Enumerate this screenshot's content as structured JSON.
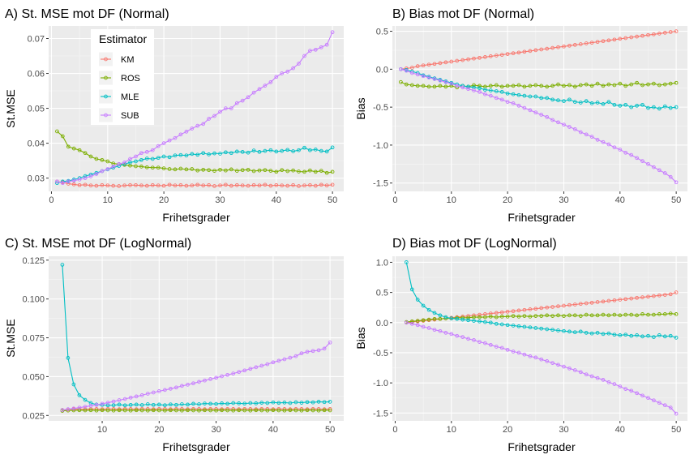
{
  "chart_data": [
    {
      "type": "line",
      "title": "A) St. MSE mot DF (Normal)",
      "xlabel": "Frihetsgrader",
      "ylabel": "St.MSE",
      "xlim": [
        -0.5,
        52
      ],
      "ylim": [
        0.0262,
        0.0736
      ],
      "xticks": [
        0,
        10,
        20,
        30,
        40,
        50
      ],
      "xtick_labels": [
        "0",
        "10",
        "20",
        "30",
        "40",
        "50"
      ],
      "yticks": [
        0.03,
        0.04,
        0.05,
        0.06,
        0.07
      ],
      "ytick_labels": [
        "0.03",
        "0.04",
        "0.05",
        "0.06",
        "0.07"
      ],
      "legend": {
        "title": "Estimator",
        "placement": "top-left inside",
        "labels": [
          "KM",
          "ROS",
          "MLE",
          "SUB"
        ]
      },
      "x_start": 1,
      "series": [
        {
          "name": "KM",
          "color": "#F8766D",
          "values": [
            0.029,
            0.0288,
            0.0284,
            0.0282,
            0.028,
            0.0281,
            0.0279,
            0.0278,
            0.028,
            0.0279,
            0.0278,
            0.0277,
            0.0279,
            0.028,
            0.028,
            0.0279,
            0.0278,
            0.028,
            0.0279,
            0.0278,
            0.0281,
            0.0279,
            0.028,
            0.0278,
            0.0279,
            0.0281,
            0.0279,
            0.028,
            0.0277,
            0.0279,
            0.0281,
            0.0278,
            0.028,
            0.0279,
            0.0278,
            0.028,
            0.0279,
            0.0281,
            0.0278,
            0.028,
            0.0279,
            0.0278,
            0.028,
            0.0277,
            0.0279,
            0.028,
            0.0278,
            0.0281,
            0.0279,
            0.0281
          ]
        },
        {
          "name": "ROS",
          "color": "#7CAE00",
          "values": [
            0.0434,
            0.042,
            0.039,
            0.0385,
            0.038,
            0.0372,
            0.0362,
            0.0355,
            0.0352,
            0.0348,
            0.0342,
            0.034,
            0.0338,
            0.0336,
            0.0334,
            0.0333,
            0.0331,
            0.033,
            0.033,
            0.0328,
            0.0326,
            0.0325,
            0.0327,
            0.0325,
            0.0326,
            0.0322,
            0.0324,
            0.0323,
            0.0321,
            0.0324,
            0.0322,
            0.0325,
            0.0321,
            0.0323,
            0.0324,
            0.032,
            0.0322,
            0.0323,
            0.0321,
            0.0318,
            0.0323,
            0.032,
            0.0322,
            0.0319,
            0.0318,
            0.0322,
            0.0318,
            0.0321,
            0.0315,
            0.0318
          ]
        },
        {
          "name": "MLE",
          "color": "#00BFC4",
          "values": [
            0.0286,
            0.029,
            0.0292,
            0.0296,
            0.03,
            0.0306,
            0.031,
            0.0315,
            0.032,
            0.0325,
            0.033,
            0.0335,
            0.034,
            0.0345,
            0.0348,
            0.0352,
            0.0356,
            0.0355,
            0.0358,
            0.0362,
            0.036,
            0.0365,
            0.0366,
            0.0365,
            0.0369,
            0.0367,
            0.0372,
            0.0368,
            0.0371,
            0.037,
            0.0374,
            0.0372,
            0.0376,
            0.0375,
            0.0373,
            0.0379,
            0.0375,
            0.0378,
            0.038,
            0.0376,
            0.0378,
            0.0381,
            0.0377,
            0.038,
            0.0387,
            0.038,
            0.0382,
            0.0378,
            0.0376,
            0.0388
          ]
        },
        {
          "name": "SUB",
          "color": "#C77CFF",
          "values": [
            0.029,
            0.0286,
            0.029,
            0.0293,
            0.0296,
            0.03,
            0.0305,
            0.0312,
            0.032,
            0.0326,
            0.0333,
            0.034,
            0.0345,
            0.0355,
            0.0362,
            0.0372,
            0.0375,
            0.038,
            0.0392,
            0.04,
            0.0408,
            0.0415,
            0.0425,
            0.0433,
            0.0442,
            0.045,
            0.0455,
            0.047,
            0.0478,
            0.049,
            0.05,
            0.05,
            0.0515,
            0.0522,
            0.0532,
            0.0545,
            0.0555,
            0.0565,
            0.0575,
            0.059,
            0.06,
            0.0605,
            0.0615,
            0.0628,
            0.065,
            0.0665,
            0.0668,
            0.0675,
            0.0682,
            0.0718
          ]
        }
      ]
    },
    {
      "type": "line",
      "title": "B) Bias mot DF (Normal)",
      "xlabel": "Frihetsgrader",
      "ylabel": "Bias",
      "xlim": [
        -0.5,
        52
      ],
      "ylim": [
        -1.61,
        0.57
      ],
      "xticks": [
        0,
        10,
        20,
        30,
        40,
        50
      ],
      "xtick_labels": [
        "0",
        "10",
        "20",
        "30",
        "40",
        "50"
      ],
      "yticks": [
        -1.5,
        -1.0,
        -0.5,
        0.0,
        0.5
      ],
      "ytick_labels": [
        "-1.5",
        "-1.0",
        "-0.5",
        "0.0",
        "0.5"
      ],
      "x_start": 1,
      "series": [
        {
          "name": "KM",
          "color": "#F8766D",
          "values": [
            0.0,
            0.01,
            0.02,
            0.04,
            0.05,
            0.06,
            0.07,
            0.08,
            0.09,
            0.1,
            0.11,
            0.12,
            0.13,
            0.14,
            0.15,
            0.16,
            0.17,
            0.18,
            0.19,
            0.2,
            0.21,
            0.22,
            0.23,
            0.24,
            0.25,
            0.26,
            0.27,
            0.28,
            0.29,
            0.3,
            0.31,
            0.32,
            0.33,
            0.34,
            0.35,
            0.36,
            0.37,
            0.38,
            0.39,
            0.4,
            0.41,
            0.42,
            0.43,
            0.44,
            0.45,
            0.46,
            0.47,
            0.48,
            0.49,
            0.5
          ]
        },
        {
          "name": "ROS",
          "color": "#7CAE00",
          "values": [
            -0.17,
            -0.2,
            -0.21,
            -0.22,
            -0.22,
            -0.23,
            -0.23,
            -0.22,
            -0.23,
            -0.22,
            -0.24,
            -0.22,
            -0.23,
            -0.21,
            -0.22,
            -0.23,
            -0.22,
            -0.21,
            -0.23,
            -0.22,
            -0.22,
            -0.21,
            -0.23,
            -0.22,
            -0.21,
            -0.22,
            -0.23,
            -0.22,
            -0.2,
            -0.22,
            -0.21,
            -0.23,
            -0.21,
            -0.2,
            -0.22,
            -0.19,
            -0.22,
            -0.2,
            -0.21,
            -0.19,
            -0.22,
            -0.2,
            -0.18,
            -0.21,
            -0.2,
            -0.19,
            -0.21,
            -0.2,
            -0.19,
            -0.18
          ]
        },
        {
          "name": "MLE",
          "color": "#00BFC4",
          "values": [
            0.0,
            -0.01,
            -0.03,
            -0.05,
            -0.08,
            -0.1,
            -0.12,
            -0.14,
            -0.16,
            -0.18,
            -0.2,
            -0.22,
            -0.23,
            -0.24,
            -0.25,
            -0.27,
            -0.28,
            -0.29,
            -0.3,
            -0.32,
            -0.33,
            -0.34,
            -0.35,
            -0.36,
            -0.36,
            -0.38,
            -0.38,
            -0.4,
            -0.41,
            -0.42,
            -0.4,
            -0.43,
            -0.44,
            -0.42,
            -0.45,
            -0.44,
            -0.46,
            -0.43,
            -0.47,
            -0.48,
            -0.47,
            -0.5,
            -0.48,
            -0.47,
            -0.51,
            -0.5,
            -0.52,
            -0.49,
            -0.51,
            -0.5
          ]
        },
        {
          "name": "SUB",
          "color": "#C77CFF",
          "values": [
            0.0,
            -0.02,
            -0.05,
            -0.07,
            -0.09,
            -0.11,
            -0.13,
            -0.15,
            -0.17,
            -0.19,
            -0.22,
            -0.24,
            -0.26,
            -0.28,
            -0.3,
            -0.33,
            -0.35,
            -0.38,
            -0.4,
            -0.43,
            -0.45,
            -0.48,
            -0.51,
            -0.54,
            -0.57,
            -0.6,
            -0.63,
            -0.67,
            -0.7,
            -0.73,
            -0.76,
            -0.79,
            -0.83,
            -0.86,
            -0.89,
            -0.93,
            -0.96,
            -0.99,
            -1.03,
            -1.06,
            -1.1,
            -1.13,
            -1.17,
            -1.21,
            -1.25,
            -1.29,
            -1.33,
            -1.37,
            -1.42,
            -1.49
          ]
        }
      ]
    },
    {
      "type": "line",
      "title": "C) St. MSE mot DF (LogNormal)",
      "xlabel": "Frihetsgrader",
      "ylabel": "St.MSE",
      "xlim": [
        0.6,
        52.4
      ],
      "ylim": [
        0.0215,
        0.1275
      ],
      "xticks": [
        10,
        20,
        30,
        40,
        50
      ],
      "xtick_labels": [
        "10",
        "20",
        "30",
        "40",
        "50"
      ],
      "yticks": [
        0.025,
        0.05,
        0.075,
        0.1,
        0.125
      ],
      "ytick_labels": [
        "0.025",
        "0.050",
        "0.075",
        "0.100",
        "0.125"
      ],
      "x_start": 3,
      "series": [
        {
          "name": "KM",
          "color": "#F8766D",
          "values": [
            0.0285,
            0.0288,
            0.029,
            0.0291,
            0.029,
            0.0292,
            0.0291,
            0.029,
            0.0292,
            0.0291,
            0.029,
            0.0292,
            0.0291,
            0.029,
            0.0292,
            0.0291,
            0.029,
            0.0292,
            0.0291,
            0.029,
            0.0292,
            0.0291,
            0.029,
            0.0292,
            0.0291,
            0.029,
            0.0292,
            0.0291,
            0.029,
            0.0292,
            0.0291,
            0.029,
            0.0292,
            0.0291,
            0.029,
            0.0292,
            0.0291,
            0.029,
            0.0292,
            0.0291,
            0.029,
            0.0292,
            0.0291,
            0.029,
            0.0292,
            0.0291,
            0.029,
            0.0292
          ]
        },
        {
          "name": "ROS",
          "color": "#7CAE00",
          "values": [
            0.028,
            0.0282,
            0.0283,
            0.0284,
            0.0283,
            0.0284,
            0.0282,
            0.0284,
            0.0283,
            0.0282,
            0.0284,
            0.0283,
            0.0282,
            0.0284,
            0.0283,
            0.0282,
            0.0284,
            0.0283,
            0.0282,
            0.0284,
            0.0283,
            0.0282,
            0.0284,
            0.0283,
            0.0282,
            0.0284,
            0.0283,
            0.0282,
            0.0284,
            0.0283,
            0.0282,
            0.0284,
            0.0283,
            0.0282,
            0.0284,
            0.0283,
            0.0282,
            0.0284,
            0.0283,
            0.0282,
            0.0284,
            0.0283,
            0.0282,
            0.0284,
            0.0283,
            0.0282,
            0.0284,
            0.0283
          ]
        },
        {
          "name": "MLE",
          "color": "#00BFC4",
          "values": [
            0.122,
            0.062,
            0.045,
            0.038,
            0.035,
            0.033,
            0.032,
            0.0318,
            0.0315,
            0.0316,
            0.032,
            0.0315,
            0.0318,
            0.032,
            0.0317,
            0.0322,
            0.0318,
            0.032,
            0.0316,
            0.0321,
            0.0318,
            0.0322,
            0.032,
            0.0325,
            0.0322,
            0.0327,
            0.0325,
            0.0324,
            0.0328,
            0.0325,
            0.033,
            0.0328,
            0.0326,
            0.033,
            0.0328,
            0.0332,
            0.033,
            0.0334,
            0.0331,
            0.0333,
            0.033,
            0.0335,
            0.0332,
            0.0336,
            0.0334,
            0.0338,
            0.0336,
            0.0338
          ]
        },
        {
          "name": "SUB",
          "color": "#C77CFF",
          "values": [
            0.0285,
            0.029,
            0.0295,
            0.03,
            0.0306,
            0.0312,
            0.0318,
            0.0325,
            0.0332,
            0.034,
            0.0348,
            0.0356,
            0.0365,
            0.0372,
            0.038,
            0.039,
            0.0398,
            0.0406,
            0.0414,
            0.0422,
            0.043,
            0.044,
            0.0448,
            0.0457,
            0.0466,
            0.0475,
            0.0484,
            0.0493,
            0.0502,
            0.0511,
            0.052,
            0.053,
            0.054,
            0.055,
            0.056,
            0.057,
            0.058,
            0.0592,
            0.0602,
            0.0612,
            0.0622,
            0.0632,
            0.065,
            0.066,
            0.0665,
            0.067,
            0.068,
            0.072
          ]
        }
      ]
    },
    {
      "type": "line",
      "title": "D) Bias mot DF (LogNormal)",
      "xlabel": "Frihetsgrader",
      "ylabel": "Bias",
      "xlim": [
        -0.5,
        52
      ],
      "ylim": [
        -1.63,
        1.1
      ],
      "xticks": [
        0,
        10,
        20,
        30,
        40,
        50
      ],
      "xtick_labels": [
        "0",
        "10",
        "20",
        "30",
        "40",
        "50"
      ],
      "yticks": [
        -1.5,
        -1.0,
        -0.5,
        0.0,
        0.5,
        1.0
      ],
      "ytick_labels": [
        "-1.5",
        "-1.0",
        "-0.5",
        "0.0",
        "0.5",
        "1.0"
      ],
      "x_start": 2,
      "series": [
        {
          "name": "KM",
          "color": "#F8766D",
          "values": [
            0.0,
            0.01,
            0.02,
            0.03,
            0.04,
            0.05,
            0.06,
            0.07,
            0.08,
            0.09,
            0.1,
            0.11,
            0.12,
            0.13,
            0.14,
            0.15,
            0.16,
            0.17,
            0.18,
            0.19,
            0.2,
            0.21,
            0.22,
            0.23,
            0.24,
            0.25,
            0.26,
            0.27,
            0.28,
            0.29,
            0.3,
            0.31,
            0.32,
            0.33,
            0.34,
            0.35,
            0.36,
            0.37,
            0.38,
            0.39,
            0.4,
            0.41,
            0.42,
            0.43,
            0.44,
            0.45,
            0.46,
            0.47,
            0.5
          ]
        },
        {
          "name": "ROS",
          "color": "#7CAE00",
          "values": [
            0.01,
            0.02,
            0.03,
            0.04,
            0.05,
            0.06,
            0.06,
            0.07,
            0.07,
            0.08,
            0.08,
            0.08,
            0.09,
            0.09,
            0.09,
            0.1,
            0.09,
            0.1,
            0.1,
            0.11,
            0.1,
            0.11,
            0.1,
            0.11,
            0.11,
            0.12,
            0.11,
            0.12,
            0.11,
            0.12,
            0.12,
            0.11,
            0.13,
            0.12,
            0.12,
            0.13,
            0.12,
            0.13,
            0.12,
            0.13,
            0.13,
            0.12,
            0.14,
            0.13,
            0.13,
            0.14,
            0.14,
            0.15,
            0.14
          ]
        },
        {
          "name": "MLE",
          "color": "#00BFC4",
          "values": [
            1.0,
            0.55,
            0.38,
            0.28,
            0.21,
            0.16,
            0.12,
            0.09,
            0.07,
            0.06,
            0.05,
            0.04,
            0.03,
            0.02,
            0.01,
            0.0,
            -0.02,
            -0.03,
            -0.04,
            -0.05,
            -0.06,
            -0.07,
            -0.08,
            -0.09,
            -0.1,
            -0.11,
            -0.12,
            -0.13,
            -0.14,
            -0.15,
            -0.16,
            -0.15,
            -0.17,
            -0.18,
            -0.17,
            -0.19,
            -0.18,
            -0.2,
            -0.21,
            -0.2,
            -0.22,
            -0.21,
            -0.23,
            -0.22,
            -0.24,
            -0.21,
            -0.23,
            -0.22,
            -0.25
          ]
        },
        {
          "name": "SUB",
          "color": "#C77CFF",
          "values": [
            0.0,
            -0.02,
            -0.04,
            -0.07,
            -0.09,
            -0.12,
            -0.14,
            -0.17,
            -0.19,
            -0.22,
            -0.24,
            -0.27,
            -0.29,
            -0.32,
            -0.34,
            -0.37,
            -0.4,
            -0.42,
            -0.45,
            -0.48,
            -0.5,
            -0.53,
            -0.56,
            -0.58,
            -0.61,
            -0.64,
            -0.67,
            -0.7,
            -0.73,
            -0.76,
            -0.79,
            -0.82,
            -0.86,
            -0.89,
            -0.92,
            -0.95,
            -0.99,
            -1.02,
            -1.06,
            -1.1,
            -1.13,
            -1.17,
            -1.21,
            -1.25,
            -1.29,
            -1.33,
            -1.37,
            -1.41,
            -1.51
          ]
        }
      ]
    }
  ]
}
